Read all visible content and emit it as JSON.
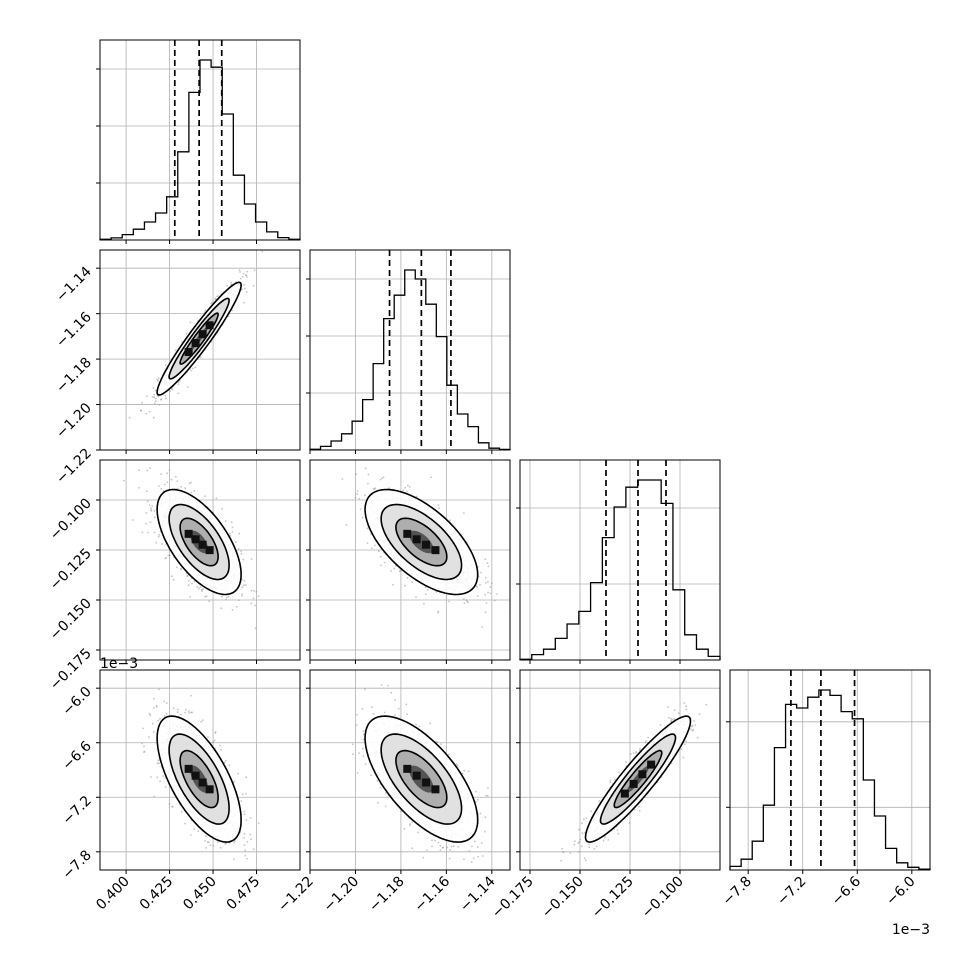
{
  "colors": {
    "ink": "#000000",
    "grid": "#b0b0b0",
    "background": "#ffffff",
    "scatter": "#8c8c8c"
  },
  "chart_data": {
    "type": "corner",
    "n_params": 4,
    "grid": true,
    "params": [
      {
        "range": [
          0.385,
          0.5
        ],
        "ticks": [
          0.4,
          0.425,
          0.45,
          0.475
        ],
        "tick_labels": [
          "0.400",
          "0.425",
          "0.450",
          "0.475"
        ],
        "quantiles": [
          0.428,
          0.442,
          0.455
        ],
        "median": 0.442,
        "std": 0.0115,
        "offset_label": "",
        "hist": [
          0.004,
          0.012,
          0.03,
          0.06,
          0.1,
          0.15,
          0.24,
          0.49,
          0.82,
          1.0,
          0.96,
          0.7,
          0.36,
          0.2,
          0.1,
          0.045,
          0.013,
          0.004
        ]
      },
      {
        "range": [
          -1.22,
          -1.132
        ],
        "ticks": [
          -1.22,
          -1.2,
          -1.18,
          -1.16,
          -1.14
        ],
        "tick_labels": [
          "−1.22",
          "−1.20",
          "−1.18",
          "−1.16",
          "−1.14"
        ],
        "quantiles": [
          -1.185,
          -1.171,
          -1.158
        ],
        "median": -1.171,
        "std": 0.0118,
        "offset_label": "",
        "hist": [
          0.004,
          0.02,
          0.05,
          0.09,
          0.16,
          0.28,
          0.48,
          0.73,
          0.86,
          1.0,
          0.95,
          0.81,
          0.63,
          0.36,
          0.2,
          0.13,
          0.04,
          0.01,
          0.003
        ]
      },
      {
        "range": [
          -0.18,
          -0.08
        ],
        "ticks": [
          -0.175,
          -0.15,
          -0.125,
          -0.1
        ],
        "tick_labels": [
          "−0.175",
          "−0.150",
          "−0.125",
          "−0.100"
        ],
        "quantiles": [
          -0.137,
          -0.121,
          -0.107
        ],
        "median": -0.121,
        "std": 0.0125,
        "offset_label": "",
        "hist": [
          0.004,
          0.03,
          0.06,
          0.12,
          0.2,
          0.27,
          0.43,
          0.68,
          0.85,
          0.96,
          1.0,
          1.0,
          0.87,
          0.39,
          0.14,
          0.06,
          0.02
        ]
      },
      {
        "range": [
          -8.0,
          -5.8
        ],
        "ticks": [
          -7.8,
          -7.2,
          -6.6,
          -6.0
        ],
        "tick_labels": [
          "−7.8",
          "−7.2",
          "−6.6",
          "−6.0"
        ],
        "quantiles": [
          -7.33,
          -7.0,
          -6.63
        ],
        "median": -7.0,
        "std": 0.33,
        "offset_label": "1e−3",
        "hist": [
          0.02,
          0.06,
          0.16,
          0.36,
          0.68,
          0.92,
          0.9,
          0.96,
          1.0,
          0.97,
          0.88,
          0.84,
          0.5,
          0.3,
          0.12,
          0.04,
          0.015,
          0.005
        ]
      }
    ],
    "correlations": [
      [
        1.0,
        0.95,
        -0.62,
        -0.65
      ],
      [
        0.95,
        1.0,
        -0.62,
        -0.65
      ],
      [
        -0.62,
        -0.62,
        1.0,
        0.92
      ],
      [
        -0.65,
        -0.65,
        0.92,
        1.0
      ]
    ]
  }
}
